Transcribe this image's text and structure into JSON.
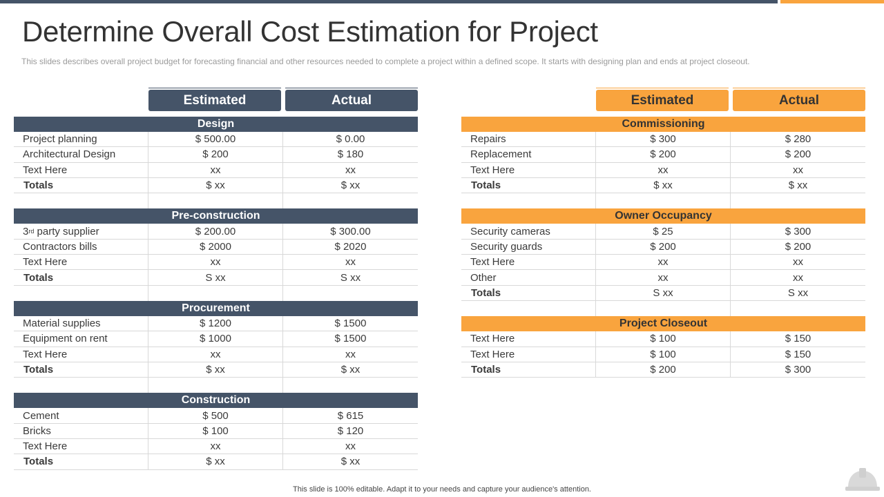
{
  "accent": {
    "dark": "#455468",
    "orange": "#f9a43e"
  },
  "title": "Determine Overall Cost Estimation for Project",
  "subtitle": "This slides describes overall  project budget for forecasting financial and other resources needed to complete a project within a defined scope. It starts with designing plan and ends at project closeout.",
  "left_table": {
    "col_estimated": "Estimated",
    "col_actual": "Actual",
    "sections": [
      {
        "name": "Design",
        "rows": [
          {
            "label": "Project planning",
            "estimated": "$ 500.00",
            "actual": "$ 0.00"
          },
          {
            "label": "Architectural Design",
            "estimated": "$ 200",
            "actual": "$ 180"
          },
          {
            "label": "Text Here",
            "estimated": "xx",
            "actual": "xx"
          }
        ],
        "totals": {
          "label": "Totals",
          "estimated": "$ xx",
          "actual": "$ xx"
        }
      },
      {
        "name": "Pre-construction",
        "rows": [
          {
            "label_prefix": "3",
            "label_sup": "rd",
            "label_rest": " party supplier",
            "estimated": "$ 200.00",
            "actual": "$ 300.00"
          },
          {
            "label": "Contractors bills",
            "estimated": "$ 2000",
            "actual": "$ 2020"
          },
          {
            "label": "Text Here",
            "estimated": "xx",
            "actual": "xx"
          }
        ],
        "totals": {
          "label": "Totals",
          "estimated": "S xx",
          "actual": "S xx"
        }
      },
      {
        "name": "Procurement",
        "rows": [
          {
            "label": "Material supplies",
            "estimated": "$ 1200",
            "actual": "$ 1500"
          },
          {
            "label": "Equipment on rent",
            "estimated": "$ 1000",
            "actual": "$ 1500"
          },
          {
            "label": "Text Here",
            "estimated": "xx",
            "actual": "xx"
          }
        ],
        "totals": {
          "label": "Totals",
          "estimated": "$ xx",
          "actual": "$ xx"
        }
      },
      {
        "name": "Construction",
        "rows": [
          {
            "label": "Cement",
            "estimated": "$ 500",
            "actual": "$ 615"
          },
          {
            "label": "Bricks",
            "estimated": "$ 100",
            "actual": "$ 120"
          },
          {
            "label": "Text Here",
            "estimated": "xx",
            "actual": "xx"
          }
        ],
        "totals": {
          "label": "Totals",
          "estimated": "$ xx",
          "actual": "$ xx"
        }
      }
    ]
  },
  "right_table": {
    "col_estimated": "Estimated",
    "col_actual": "Actual",
    "sections": [
      {
        "name": "Commissioning",
        "rows": [
          {
            "label": "Repairs",
            "estimated": "$ 300",
            "actual": "$ 280"
          },
          {
            "label": "Replacement",
            "estimated": "$ 200",
            "actual": "$ 200"
          },
          {
            "label": "Text Here",
            "estimated": "xx",
            "actual": "xx"
          }
        ],
        "totals": {
          "label": "Totals",
          "estimated": "$ xx",
          "actual": "$ xx"
        }
      },
      {
        "name": "Owner Occupancy",
        "rows": [
          {
            "label": "Security cameras",
            "estimated": "$ 25",
            "actual": "$ 300"
          },
          {
            "label": "Security guards",
            "estimated": "$ 200",
            "actual": "$ 200"
          },
          {
            "label": "Text Here",
            "estimated": "xx",
            "actual": "xx"
          },
          {
            "label": "Other",
            "estimated": "xx",
            "actual": "xx"
          }
        ],
        "totals": {
          "label": "Totals",
          "estimated": "S xx",
          "actual": "S xx"
        }
      },
      {
        "name": "Project Closeout",
        "rows": [
          {
            "label": "Text Here",
            "estimated": "$ 100",
            "actual": "$ 150"
          },
          {
            "label": "Text Here",
            "estimated": "$ 100",
            "actual": "$ 150"
          }
        ],
        "totals": {
          "label": "Totals",
          "estimated": "$ 200",
          "actual": "$ 300"
        }
      }
    ]
  },
  "footer": "This slide is 100% editable. Adapt it to your needs and capture your audience's attention.",
  "icons": {
    "corner": "helmet-icon"
  }
}
